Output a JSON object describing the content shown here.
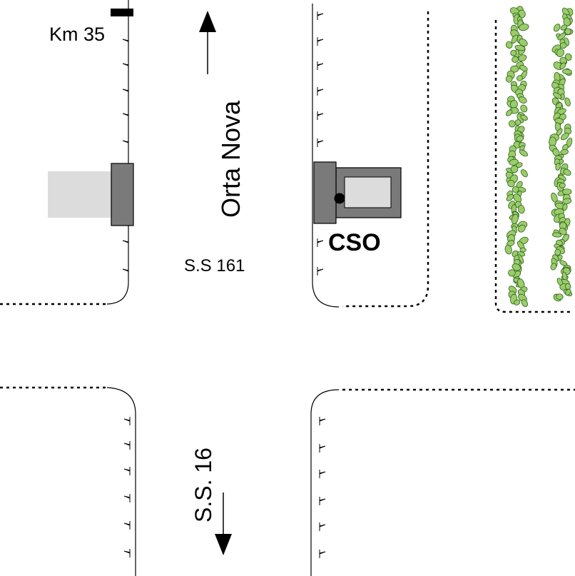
{
  "labels": {
    "km_marker": "Km 35",
    "north_destination": "Orta Nova",
    "road_main": "S.S 161",
    "station": "CSO",
    "road_south": "S.S. 16"
  },
  "colors": {
    "line": "#000000",
    "building_dark": "#7a7a7a",
    "building_light": "#dcdcdc",
    "station_frame": "#7a7a7a",
    "station_inner": "#dcdcdc",
    "tree_fill": "#9acd6a",
    "tree_stroke": "#2e5e1a"
  }
}
